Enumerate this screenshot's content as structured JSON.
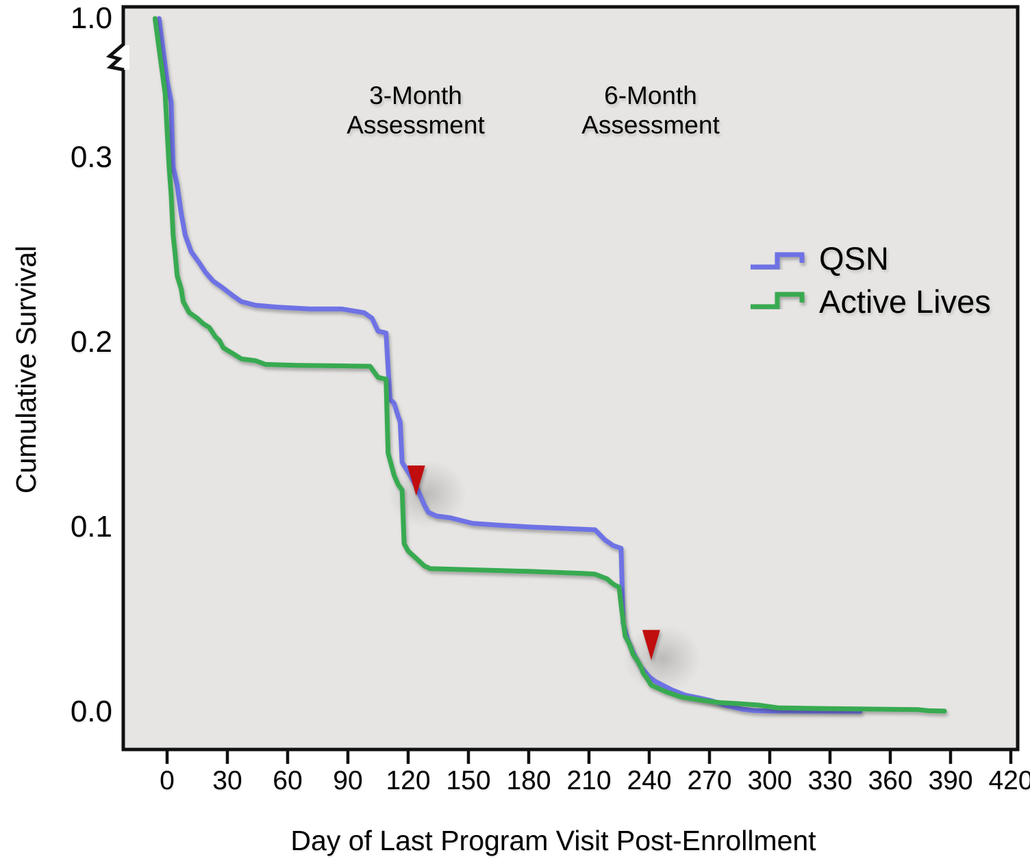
{
  "chart_data": {
    "type": "line",
    "subtype": "kaplan-meier-step-survival",
    "title": "",
    "xlabel": "Day of Last Program Visit Post-Enrollment",
    "ylabel": "Cumulative Survival",
    "x_ticks": [
      0,
      30,
      60,
      90,
      120,
      150,
      180,
      210,
      240,
      270,
      300,
      330,
      360,
      390,
      420
    ],
    "y_ticks": [
      {
        "value": 0.0,
        "label": "0.0"
      },
      {
        "value": 0.1,
        "label": "0.1"
      },
      {
        "value": 0.2,
        "label": "0.2"
      },
      {
        "value": 0.3,
        "label": "0.3"
      },
      {
        "value": 1.0,
        "label": "1.0"
      }
    ],
    "y_axis_break": {
      "between": [
        0.3,
        1.0
      ]
    },
    "xlim": [
      -22,
      424
    ],
    "grid": false,
    "legend_position": "right-middle",
    "plot_background": "#e6e5e3",
    "axis_color": "#111111",
    "arrow_color": "#c00f0f",
    "series": [
      {
        "name": "QSN",
        "color": "#6e72e4",
        "points": [
          [
            -4,
            1.0
          ],
          [
            0,
            0.5
          ],
          [
            2,
            0.33
          ],
          [
            3,
            0.295
          ],
          [
            5,
            0.285
          ],
          [
            7,
            0.27
          ],
          [
            9,
            0.258
          ],
          [
            12,
            0.249
          ],
          [
            16,
            0.243
          ],
          [
            19,
            0.238
          ],
          [
            23,
            0.233
          ],
          [
            27,
            0.23
          ],
          [
            33,
            0.225
          ],
          [
            37,
            0.222
          ],
          [
            44,
            0.22
          ],
          [
            55,
            0.219
          ],
          [
            71,
            0.218
          ],
          [
            87,
            0.218
          ],
          [
            98,
            0.216
          ],
          [
            102,
            0.213
          ],
          [
            105,
            0.206
          ],
          [
            109,
            0.205
          ],
          [
            110,
            0.186
          ],
          [
            111,
            0.169
          ],
          [
            113,
            0.167
          ],
          [
            115,
            0.16
          ],
          [
            116,
            0.157
          ],
          [
            117,
            0.135
          ],
          [
            121,
            0.128
          ],
          [
            124,
            0.122
          ],
          [
            126,
            0.117
          ],
          [
            128,
            0.112
          ],
          [
            130,
            0.108
          ],
          [
            134,
            0.106
          ],
          [
            141,
            0.105
          ],
          [
            152,
            0.102
          ],
          [
            165,
            0.101
          ],
          [
            181,
            0.1
          ],
          [
            203,
            0.099
          ],
          [
            213,
            0.0985
          ],
          [
            218,
            0.093
          ],
          [
            222,
            0.09
          ],
          [
            226,
            0.0885
          ],
          [
            227,
            0.048
          ],
          [
            229,
            0.04
          ],
          [
            232,
            0.032
          ],
          [
            236,
            0.024
          ],
          [
            240,
            0.019
          ],
          [
            243,
            0.0165
          ],
          [
            251,
            0.012
          ],
          [
            258,
            0.009
          ],
          [
            265,
            0.0075
          ],
          [
            271,
            0.006
          ],
          [
            278,
            0.0035
          ],
          [
            286,
            0.0015
          ],
          [
            292,
            0.0007
          ],
          [
            300,
            0.0004
          ],
          [
            345,
            0.0003
          ]
        ]
      },
      {
        "name": "Active Lives",
        "color": "#39aa51",
        "points": [
          [
            -6,
            1.0
          ],
          [
            -1,
            0.4
          ],
          [
            1,
            0.295
          ],
          [
            2,
            0.28
          ],
          [
            3,
            0.258
          ],
          [
            4,
            0.248
          ],
          [
            5,
            0.236
          ],
          [
            7,
            0.229
          ],
          [
            8,
            0.222
          ],
          [
            11,
            0.216
          ],
          [
            15,
            0.213
          ],
          [
            18,
            0.21
          ],
          [
            21,
            0.208
          ],
          [
            24,
            0.203
          ],
          [
            26,
            0.201
          ],
          [
            28,
            0.197
          ],
          [
            31,
            0.195
          ],
          [
            34,
            0.193
          ],
          [
            37,
            0.191
          ],
          [
            44,
            0.19
          ],
          [
            49,
            0.188
          ],
          [
            64,
            0.1875
          ],
          [
            101,
            0.187
          ],
          [
            103,
            0.184
          ],
          [
            105,
            0.181
          ],
          [
            109,
            0.18
          ],
          [
            110,
            0.14
          ],
          [
            113,
            0.128
          ],
          [
            115,
            0.123
          ],
          [
            117,
            0.12
          ],
          [
            118,
            0.091
          ],
          [
            120,
            0.087
          ],
          [
            122,
            0.085
          ],
          [
            125,
            0.082
          ],
          [
            128,
            0.079
          ],
          [
            131,
            0.0775
          ],
          [
            180,
            0.076
          ],
          [
            207,
            0.0749
          ],
          [
            213,
            0.0745
          ],
          [
            219,
            0.072
          ],
          [
            221,
            0.07
          ],
          [
            223,
            0.0685
          ],
          [
            225,
            0.0675
          ],
          [
            226,
            0.058
          ],
          [
            228,
            0.041
          ],
          [
            230,
            0.037
          ],
          [
            232,
            0.031
          ],
          [
            234,
            0.028
          ],
          [
            236,
            0.024
          ],
          [
            237,
            0.021
          ],
          [
            239,
            0.018
          ],
          [
            241,
            0.0145
          ],
          [
            244,
            0.013
          ],
          [
            248,
            0.011
          ],
          [
            252,
            0.0095
          ],
          [
            256,
            0.008
          ],
          [
            262,
            0.007
          ],
          [
            268,
            0.006
          ],
          [
            275,
            0.005
          ],
          [
            283,
            0.0045
          ],
          [
            294,
            0.0037
          ],
          [
            304,
            0.0022
          ],
          [
            325,
            0.0018
          ],
          [
            374,
            0.0012
          ],
          [
            379,
            0.0006
          ],
          [
            387,
            0.0004
          ]
        ]
      }
    ],
    "annotations": [
      {
        "line1": "3-Month",
        "line2": "Assessment",
        "day": 124,
        "arrow_from": 0.305,
        "arrow_to": 0.117
      },
      {
        "line1": "6-Month",
        "line2": "Assessment",
        "day": 241,
        "arrow_from": 0.309,
        "arrow_to": 0.028
      }
    ]
  },
  "colors": {
    "qsn": "#6e72e4",
    "active_lives": "#39aa51",
    "arrow": "#c00f0f",
    "plot_background": "#e6e5e3",
    "axis": "#111111"
  }
}
